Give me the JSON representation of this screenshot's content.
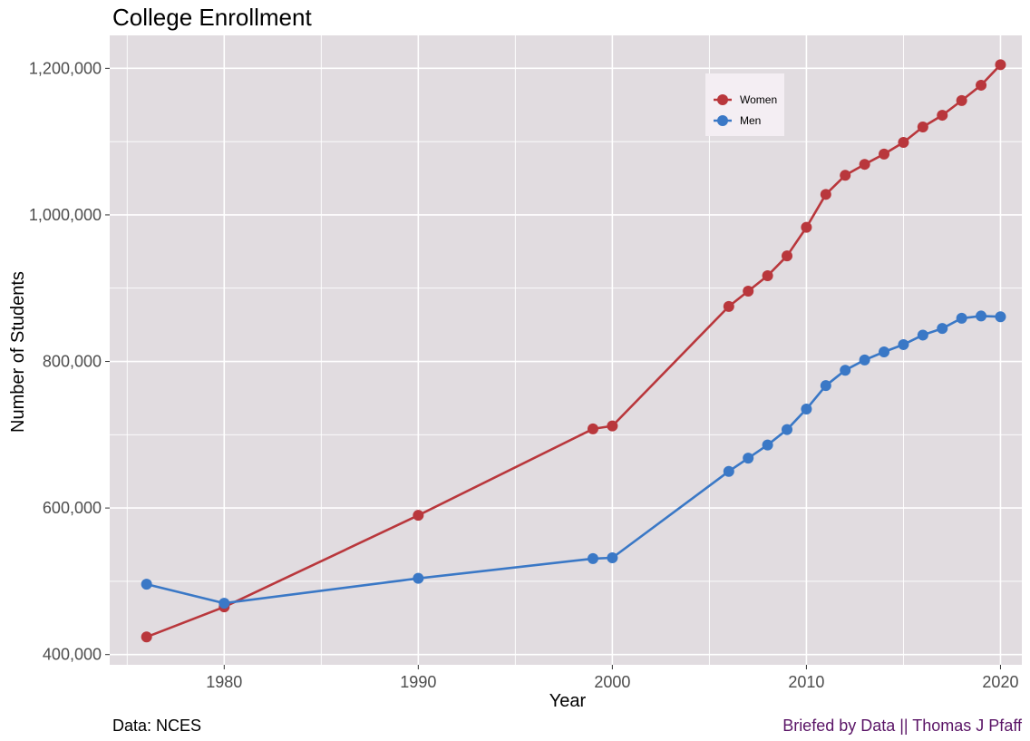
{
  "header": {
    "title": "College Enrollment"
  },
  "captions": {
    "left": "Data: NCES",
    "right": "Briefed by Data || Thomas J Pfaff"
  },
  "colors": {
    "women": "#b9373c",
    "men": "#3a78c6",
    "panel": "#e1dce0",
    "grid": "#ffffff",
    "legend_bg": "#f4eef3"
  },
  "chart_data": {
    "type": "line",
    "xlabel": "Year",
    "ylabel": "Number of Students",
    "xlim": [
      1974.1,
      2021.1
    ],
    "ylim": [
      386000,
      1245000
    ],
    "x_ticks": [
      1980,
      1990,
      2000,
      2010,
      2020
    ],
    "x_tick_labels": [
      "1980",
      "1990",
      "2000",
      "2010",
      "2020"
    ],
    "y_ticks": [
      400000,
      600000,
      800000,
      1000000,
      1200000
    ],
    "y_tick_labels": [
      "400,000",
      "600,000",
      "800,000",
      "1,000,000",
      "1,200,000"
    ],
    "grid": true,
    "legend_position": "top-right",
    "x": [
      1976,
      1980,
      1990,
      1999,
      2000,
      2006,
      2007,
      2008,
      2009,
      2010,
      2011,
      2012,
      2013,
      2014,
      2015,
      2016,
      2017,
      2018,
      2019,
      2020
    ],
    "series": [
      {
        "name": "Women",
        "color": "#b9373c",
        "values": [
          424000,
          465000,
          590000,
          708000,
          712000,
          875000,
          896000,
          917000,
          944000,
          983000,
          1028000,
          1054000,
          1069000,
          1083000,
          1099000,
          1120000,
          1136000,
          1156000,
          1177000,
          1205000
        ]
      },
      {
        "name": "Men",
        "color": "#3a78c6",
        "values": [
          496000,
          470000,
          504000,
          531000,
          532000,
          650000,
          668000,
          686000,
          707000,
          735000,
          767000,
          788000,
          802000,
          813000,
          823000,
          836000,
          845000,
          859000,
          862000,
          861000
        ]
      }
    ]
  }
}
